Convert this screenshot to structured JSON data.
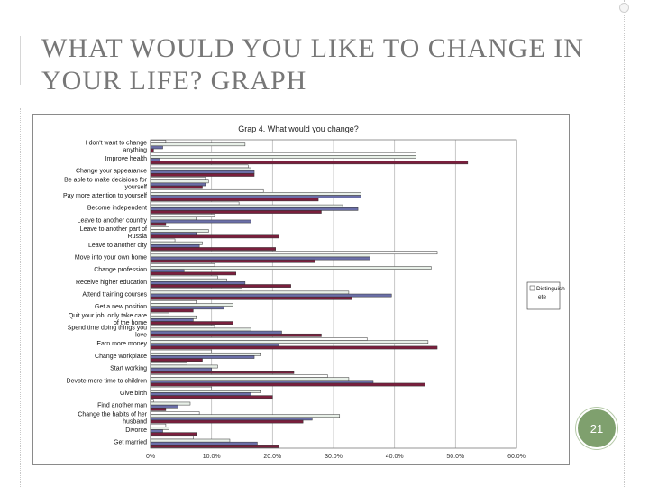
{
  "slide": {
    "title": "WHAT WOULD YOU LIKE TO CHANGE IN YOUR LIFE? GRAPH",
    "page_number": "21"
  },
  "colors": {
    "title": "#777777",
    "badge": "#7fa06e",
    "series": [
      "#ffffff",
      "#e8f0e8",
      "#6b6fa8",
      "#7a1f3d"
    ]
  },
  "chart_data": {
    "type": "bar",
    "orientation": "horizontal",
    "title": "Grap 4. What would you change?",
    "xlabel": "",
    "ylabel": "",
    "xlim": [
      0,
      60
    ],
    "x_ticks": [
      "0%",
      "10.0%",
      "20.0%",
      "30.0%",
      "40.0%",
      "50.0%",
      "60.0%"
    ],
    "grid": "vertical",
    "legend_position": "right",
    "legend_label": "Distinguish ete",
    "categories": [
      "I don't want to change anything",
      "Improve health",
      "Change your appearance",
      "Be able to make decisions for yourself",
      "Pay more attention to yourself",
      "Become independent",
      "Leave to another country",
      "Leave to another part of Russia",
      "Leave to another city",
      "Move into your own home",
      "Change profession",
      "Receive higher education",
      "Attend training courses",
      "Get a new position",
      "Quit your job, only take care of the home",
      "Spend time doing things you love",
      "Earn more money",
      "Change workplace",
      "Start working",
      "Devote more time to children",
      "Give birth",
      "Find another man",
      "Change the habits of her husband",
      "Divorce",
      "Get married"
    ],
    "series": [
      {
        "color": "#ffffff",
        "values": [
          2.5,
          43.5,
          16.0,
          9.0,
          18.5,
          14.5,
          10.5,
          3.0,
          4.0,
          47.0,
          10.5,
          11.0,
          15.0,
          7.5,
          3.0,
          10.5,
          35.5,
          10.0,
          6.0,
          29.0,
          10.0,
          0.5,
          8.0,
          2.5,
          7.0
        ]
      },
      {
        "color": "#e8f0e8",
        "values": [
          15.5,
          43.5,
          16.5,
          9.5,
          34.5,
          31.5,
          7.5,
          9.5,
          8.5,
          36.0,
          46.0,
          12.5,
          32.5,
          13.5,
          7.5,
          16.5,
          45.5,
          18.0,
          11.0,
          32.5,
          18.0,
          6.5,
          31.0,
          3.0,
          13.0
        ]
      },
      {
        "color": "#6b6fa8",
        "values": [
          2.0,
          1.5,
          17.0,
          9.0,
          34.5,
          34.0,
          16.5,
          7.5,
          8.0,
          36.0,
          5.5,
          15.5,
          39.5,
          12.0,
          7.0,
          21.5,
          21.0,
          17.0,
          10.0,
          36.5,
          16.5,
          4.5,
          26.5,
          2.0,
          17.5
        ]
      },
      {
        "color": "#7a1f3d",
        "values": [
          0.5,
          52.0,
          17.0,
          8.5,
          27.5,
          28.0,
          2.5,
          21.0,
          20.5,
          27.0,
          14.0,
          23.0,
          33.0,
          7.0,
          13.5,
          28.0,
          47.0,
          8.5,
          23.5,
          45.0,
          20.0,
          2.5,
          25.0,
          7.5,
          21.0
        ]
      }
    ]
  }
}
